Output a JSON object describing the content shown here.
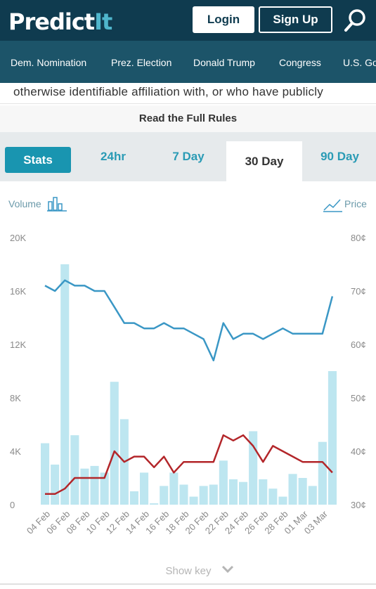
{
  "header": {
    "logo_main": "Predict",
    "logo_accent": "It",
    "login_label": "Login",
    "signup_label": "Sign Up",
    "search_icon": "search-icon"
  },
  "nav": {
    "items": [
      {
        "label": "Dem. Nomination"
      },
      {
        "label": "Prez. Election"
      },
      {
        "label": "Donald Trump"
      },
      {
        "label": "Congress"
      },
      {
        "label": "U.S. Gov"
      }
    ]
  },
  "rules": {
    "peek_text": "otherwise identifiable affiliation with, or who have publicly",
    "read_full": "Read the Full Rules"
  },
  "tabs": [
    {
      "label": "Stats"
    },
    {
      "label": "24hr"
    },
    {
      "label": "7 Day"
    },
    {
      "label": "30 Day"
    },
    {
      "label": "90 Day"
    }
  ],
  "legend": {
    "volume_label": "Volume",
    "price_label": "Price"
  },
  "show_key": "Show key",
  "colors": {
    "header_bg": "#0f3b4f",
    "nav_bg": "#1c5469",
    "accent": "#2a9bb5",
    "volume_bar": "#bde6f0",
    "line_blue": "#3a97c5",
    "line_red": "#b3262a"
  },
  "chart_data": {
    "type": "bar+line",
    "x": [
      "04 Feb",
      "05 Feb",
      "06 Feb",
      "07 Feb",
      "08 Feb",
      "09 Feb",
      "10 Feb",
      "11 Feb",
      "12 Feb",
      "13 Feb",
      "14 Feb",
      "15 Feb",
      "16 Feb",
      "17 Feb",
      "18 Feb",
      "19 Feb",
      "20 Feb",
      "21 Feb",
      "22 Feb",
      "23 Feb",
      "24 Feb",
      "25 Feb",
      "26 Feb",
      "27 Feb",
      "28 Feb",
      "29 Feb",
      "01 Mar",
      "02 Mar",
      "03 Mar",
      "04 Mar"
    ],
    "tick_labels": [
      "04 Feb",
      "06 Feb",
      "08 Feb",
      "10 Feb",
      "12 Feb",
      "14 Feb",
      "16 Feb",
      "18 Feb",
      "20 Feb",
      "22 Feb",
      "24 Feb",
      "26 Feb",
      "28 Feb",
      "01 Mar",
      "03 Mar"
    ],
    "volume_axis": {
      "ticks": [
        "0",
        "4K",
        "8K",
        "12K",
        "16K",
        "20K"
      ],
      "ylim": [
        0,
        20000
      ]
    },
    "price_axis": {
      "ticks": [
        "30¢",
        "40¢",
        "50¢",
        "60¢",
        "70¢",
        "80¢"
      ],
      "ylim": [
        30,
        80
      ]
    },
    "volume": [
      4600,
      3000,
      18000,
      5200,
      2700,
      2900,
      2400,
      9200,
      6400,
      1000,
      2400,
      100,
      1400,
      2400,
      1500,
      600,
      1400,
      1500,
      3300,
      1900,
      1700,
      5500,
      1900,
      1200,
      600,
      2300,
      2000,
      1400,
      4700,
      10000
    ],
    "series": [
      {
        "values": [
          71,
          70,
          72,
          71,
          71,
          70,
          70,
          67,
          64,
          64,
          63,
          63,
          64,
          63,
          63,
          62,
          61,
          57,
          64,
          61,
          62,
          62,
          61,
          62,
          63,
          62,
          62,
          62,
          62,
          69
        ]
      },
      {
        "values": [
          32,
          32,
          33,
          35,
          35,
          35,
          35,
          40,
          38,
          39,
          39,
          37,
          39,
          36,
          38,
          38,
          38,
          38,
          43,
          42,
          43,
          41,
          38,
          41,
          40,
          39,
          38,
          38,
          38,
          36
        ]
      }
    ]
  }
}
